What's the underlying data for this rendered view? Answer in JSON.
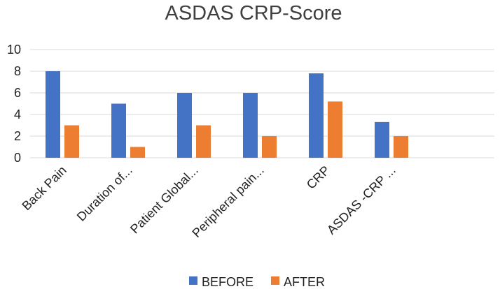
{
  "chart_data": {
    "type": "bar",
    "title": "ASDAS CRP-Score",
    "categories": [
      "Back Pain",
      "Duration of...",
      "Patient Global...",
      "Peripheral pain...",
      "CRP",
      "ASDAS -CRP ..."
    ],
    "series": [
      {
        "name": "BEFORE",
        "color": "#4472C4",
        "values": [
          8,
          5,
          6,
          6,
          7.8,
          3.3
        ]
      },
      {
        "name": "AFTER",
        "color": "#ED7D31",
        "values": [
          3,
          1,
          3,
          2,
          5.2,
          2
        ]
      }
    ],
    "yticks": [
      "0",
      "2",
      "4",
      "6",
      "8",
      "10"
    ],
    "ylim": [
      0,
      10
    ],
    "xlabel": "",
    "ylabel": "",
    "grid": true,
    "legend_position": "bottom"
  }
}
